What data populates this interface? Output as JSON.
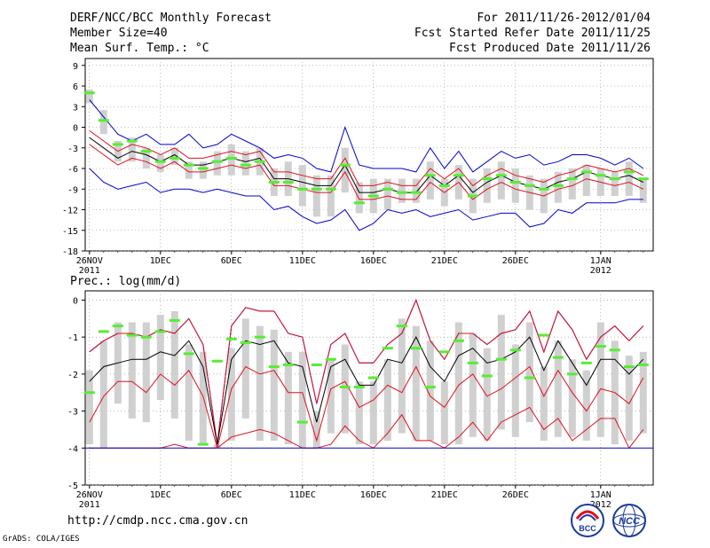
{
  "header": {
    "title": "DERF/NCC/BCC Monthly Forecast",
    "member_size": "Member Size=40",
    "variable": "Mean Surf. Temp.: °C",
    "period": "For 2011/11/26-2012/01/04",
    "started": "Fcst Started Refer Date 2011/11/25",
    "produced": "Fcst Produced Date 2011/11/26"
  },
  "footer": {
    "url": "http://cmdp.ncc.cma.gov.cn",
    "grads": "GrADS: COLA/IGES",
    "logo_bcc": "BCC",
    "logo_ncc": "NCC"
  },
  "colors": {
    "mean": "#000000",
    "spread": "#e0101e",
    "envelope": "#0000cc",
    "box": "#d0d0d0",
    "median": "#55ee33",
    "grid": "#888888"
  },
  "chart_data": [
    {
      "type": "line",
      "title": "Mean Surf. Temp.: °C",
      "ylim": [
        -18,
        10
      ],
      "yticks": [
        9,
        6,
        3,
        0,
        -3,
        -6,
        -9,
        -12,
        -15,
        -18
      ],
      "xticks": [
        {
          "day": 0,
          "label": "26NOV",
          "sub": "2011"
        },
        {
          "day": 5,
          "label": "1DEC"
        },
        {
          "day": 10,
          "label": "6DEC"
        },
        {
          "day": 15,
          "label": "11DEC"
        },
        {
          "day": 20,
          "label": "16DEC"
        },
        {
          "day": 25,
          "label": "21DEC"
        },
        {
          "day": 30,
          "label": "26DEC"
        },
        {
          "day": 36,
          "label": "1JAN",
          "sub": "2012"
        }
      ],
      "days": 40,
      "mean": [
        -1.5,
        -3,
        -4.5,
        -3.5,
        -4,
        -5,
        -4,
        -5.5,
        -5.5,
        -5,
        -4.5,
        -5,
        -4.5,
        -7.5,
        -7.5,
        -8,
        -8.5,
        -8.5,
        -5.5,
        -9.5,
        -9.5,
        -9,
        -9.5,
        -9.5,
        -7,
        -8.5,
        -7,
        -9.5,
        -8,
        -7,
        -8,
        -8.5,
        -9,
        -8,
        -7.5,
        -6.5,
        -7,
        -7.5,
        -7,
        -8
      ],
      "upper": [
        -0.5,
        -2,
        -3.5,
        -2.5,
        -3,
        -4,
        -3,
        -4.5,
        -4.5,
        -4,
        -3.5,
        -4,
        -3.5,
        -6.5,
        -6.5,
        -7,
        -7.5,
        -7.5,
        -4.5,
        -8.5,
        -8.5,
        -8,
        -8.5,
        -8.5,
        -6,
        -7.5,
        -6,
        -8.5,
        -7,
        -6,
        -7,
        -7.5,
        -8,
        -7,
        -6.5,
        -5.5,
        -6,
        -6.5,
        -6,
        -7
      ],
      "lower": [
        -2.5,
        -4,
        -5.5,
        -4.5,
        -5,
        -6,
        -5,
        -6.5,
        -6.5,
        -6,
        -5.5,
        -6,
        -5.5,
        -8.5,
        -8.5,
        -9,
        -9.5,
        -9.5,
        -6.5,
        -10.5,
        -10.5,
        -10,
        -10.5,
        -10.5,
        -8,
        -9.5,
        -8,
        -10.5,
        -9,
        -8,
        -9,
        -9.5,
        -10,
        -9,
        -8.5,
        -7.5,
        -8,
        -8.5,
        -8,
        -9
      ],
      "max": [
        4,
        1.5,
        -1,
        -2,
        -1,
        -2.5,
        -2.5,
        -1,
        -3,
        -2.5,
        -1,
        -2,
        -3,
        -4.5,
        -4,
        -4.5,
        -6,
        -6.5,
        0,
        -5.5,
        -6,
        -6,
        -6,
        -6.5,
        -3,
        -6,
        -3.5,
        -6.5,
        -5,
        -3.5,
        -4.5,
        -4,
        -5.5,
        -5,
        -4,
        -4,
        -4.5,
        -5.5,
        -4.5,
        -6
      ],
      "min": [
        -6,
        -8,
        -9,
        -8.5,
        -8,
        -9.5,
        -9,
        -9,
        -9.5,
        -9,
        -9.5,
        -10,
        -10,
        -12,
        -11.5,
        -13,
        -14,
        -13.5,
        -12,
        -15,
        -14,
        -12,
        -12.5,
        -12,
        -13,
        -12.5,
        -12,
        -13.5,
        -13,
        -12.5,
        -12.5,
        -14.5,
        -14,
        -12,
        -12.5,
        -11,
        -11,
        -11,
        -10.5,
        -10.5
      ],
      "box_top": [
        5.5,
        2.5,
        -2,
        -1.5,
        -3,
        -4,
        -3,
        -5,
        -5,
        -3.5,
        -2.5,
        -3.5,
        -3,
        -6,
        -5,
        -5.5,
        -7,
        -7,
        -3,
        -8,
        -7.5,
        -7.5,
        -7.5,
        -7.5,
        -5,
        -7.5,
        -5.5,
        -7.5,
        -6,
        -5,
        -6,
        -7,
        -7.5,
        -6.5,
        -6,
        -5.5,
        -6,
        -6.5,
        -5,
        -7.5
      ],
      "box_bottom": [
        3.5,
        -1,
        -5,
        -5,
        -6,
        -6.5,
        -5.5,
        -7.5,
        -7.5,
        -7,
        -7,
        -7,
        -7,
        -10,
        -10,
        -11.5,
        -13,
        -13,
        -9.5,
        -12.5,
        -12.5,
        -12,
        -11,
        -11,
        -10.5,
        -11.5,
        -10.5,
        -12.5,
        -11,
        -10.5,
        -11,
        -12,
        -12.5,
        -11,
        -10.5,
        -10,
        -10,
        -10,
        -10,
        -11
      ],
      "median": [
        5,
        1,
        -2.5,
        -2,
        -3.5,
        -5,
        -4.5,
        -5.5,
        -6,
        -5,
        -4.5,
        -5.5,
        -5,
        -8,
        -8,
        -9,
        -9,
        -9,
        -5.5,
        -11,
        -10,
        -9,
        -9.5,
        -9.5,
        -7,
        -8.5,
        -7,
        -10,
        -7.5,
        -7,
        -8,
        -8.5,
        -9,
        -8.5,
        -7.5,
        -6.5,
        -7,
        -7.5,
        -6.5,
        -7.5
      ]
    },
    {
      "type": "line",
      "title": "Prec.: log(mm/d)",
      "ylim": [
        -5,
        0.25
      ],
      "yticks": [
        0,
        -1,
        -2,
        -3,
        -4,
        -5
      ],
      "xticks": [
        {
          "day": 0,
          "label": "26NOV",
          "sub": "2011"
        },
        {
          "day": 5,
          "label": "1DEC"
        },
        {
          "day": 10,
          "label": "6DEC"
        },
        {
          "day": 15,
          "label": "11DEC"
        },
        {
          "day": 20,
          "label": "16DEC"
        },
        {
          "day": 25,
          "label": "21DEC"
        },
        {
          "day": 30,
          "label": "26DEC"
        },
        {
          "day": 36,
          "label": "1JAN",
          "sub": "2012"
        }
      ],
      "days": 40,
      "mean": [
        -2.2,
        -1.8,
        -1.7,
        -1.6,
        -1.6,
        -1.4,
        -1.5,
        -1.1,
        -1.8,
        -3.9,
        -1.6,
        -1.1,
        -1.2,
        -1.1,
        -1.7,
        -1.8,
        -3.3,
        -1.8,
        -1.6,
        -2.3,
        -2.3,
        -1.6,
        -1.7,
        -1.0,
        -1.8,
        -2.2,
        -1.5,
        -1.3,
        -1.7,
        -1.6,
        -1.4,
        -1.0,
        -1.9,
        -1.1,
        -1.7,
        -2.3,
        -1.6,
        -1.6,
        -2.0,
        -1.6
      ],
      "upper": [
        -1.4,
        -1.1,
        -0.9,
        -0.9,
        -1.0,
        -0.8,
        -0.9,
        -0.5,
        -1.2,
        -3.9,
        -0.7,
        -0.2,
        -0.3,
        -0.3,
        -0.9,
        -1.0,
        -2.8,
        -1.2,
        -0.9,
        -1.7,
        -1.7,
        -1.2,
        -0.9,
        0.0,
        -1.1,
        -1.6,
        -0.9,
        -0.9,
        -1.2,
        -0.9,
        -0.8,
        -0.3,
        -1.4,
        -0.3,
        -0.8,
        -1.6,
        -1.0,
        -0.7,
        -1.1,
        -0.7
      ],
      "lower": [
        -3.3,
        -2.6,
        -2.2,
        -2.2,
        -2.5,
        -2.0,
        -2.3,
        -1.9,
        -2.6,
        -4.0,
        -2.4,
        -1.8,
        -2.0,
        -1.9,
        -2.5,
        -2.5,
        -3.8,
        -2.4,
        -2.2,
        -2.9,
        -2.7,
        -2.3,
        -2.5,
        -1.8,
        -2.6,
        -2.9,
        -2.3,
        -2.0,
        -2.6,
        -2.4,
        -2.1,
        -1.8,
        -2.6,
        -1.9,
        -2.5,
        -3.0,
        -2.4,
        -2.5,
        -2.8,
        -2.1
      ],
      "maxl": [
        -1.4,
        -1.1,
        -0.9,
        -0.9,
        -1.0,
        -0.8,
        -0.9,
        -0.5,
        -1.2,
        -3.9,
        -0.7,
        -0.2,
        -0.3,
        -0.3,
        -0.9,
        -1.0,
        -2.8,
        -1.2,
        -0.9,
        -1.7,
        -1.7,
        -1.2,
        -0.9,
        0.0,
        -1.1,
        -1.6,
        -0.9,
        -0.9,
        -1.2,
        -0.9,
        -0.8,
        -0.3,
        -1.4,
        -0.3,
        -0.8,
        -1.6,
        -1.0,
        -0.7,
        -1.1,
        -0.7
      ],
      "min": [
        -4,
        -4,
        -4,
        -4,
        -4,
        -4,
        -3.9,
        -4,
        -4,
        -4,
        -3.7,
        -3.6,
        -3.5,
        -3.6,
        -3.8,
        -4,
        -4,
        -3.9,
        -3.4,
        -3.8,
        -4,
        -3.6,
        -3.1,
        -3.8,
        -3.8,
        -4,
        -3.7,
        -3.3,
        -3.8,
        -3.3,
        -3.1,
        -2.9,
        -3.5,
        -3.2,
        -3.8,
        -3.5,
        -3.2,
        -3.2,
        -4,
        -3.5
      ],
      "box_top": [
        -1.9,
        -1.1,
        -0.6,
        -0.6,
        -0.6,
        -0.4,
        -0.3,
        -1.2,
        -1.4,
        -3.9,
        -1.3,
        -0.5,
        -0.7,
        -0.8,
        -1.4,
        -1.4,
        -3.0,
        -1.6,
        -1.2,
        -2.2,
        -2.2,
        -1.6,
        -0.5,
        -0.7,
        -1.1,
        -2.2,
        -0.6,
        -0.9,
        -1.3,
        -0.4,
        -1.2,
        -0.6,
        -1.8,
        -1.1,
        -1.6,
        -1.9,
        -0.6,
        -1.1,
        -1.5,
        -1.4
      ],
      "box_bottom": [
        -3.9,
        -4.0,
        -2.8,
        -3.2,
        -3.3,
        -2.7,
        -3.2,
        -3.8,
        -3.9,
        -4.0,
        -3.8,
        -3.2,
        -3.8,
        -3.8,
        -3.9,
        -4.0,
        -4.0,
        -3.6,
        -3.6,
        -3.9,
        -3.9,
        -3.8,
        -3.6,
        -3.8,
        -3.8,
        -3.9,
        -3.9,
        -3.7,
        -3.8,
        -3.5,
        -3.7,
        -3.3,
        -3.8,
        -3.7,
        -3.7,
        -3.8,
        -3.7,
        -3.9,
        -3.8,
        -3.6
      ],
      "median": [
        -2.5,
        -0.85,
        -0.7,
        -0.95,
        -1.0,
        -0.85,
        -0.55,
        -1.45,
        -3.9,
        -1.65,
        -1.05,
        -1.15,
        -1.0,
        -1.8,
        -1.75,
        -3.3,
        -1.75,
        -1.6,
        -2.35,
        -2.35,
        -2.1,
        -1.3,
        -0.7,
        -1.3,
        -2.35,
        -1.4,
        -1.1,
        -1.7,
        -2.05,
        -1.6,
        -1.35,
        -2.1,
        -0.95,
        -1.55,
        -2.0,
        -1.7,
        -1.25,
        -1.35,
        -1.8,
        -1.75
      ]
    }
  ],
  "axis_labels": {
    "temp": "Mean Surf. Temp.: °C",
    "prec": "Prec.: log(mm/d)"
  }
}
